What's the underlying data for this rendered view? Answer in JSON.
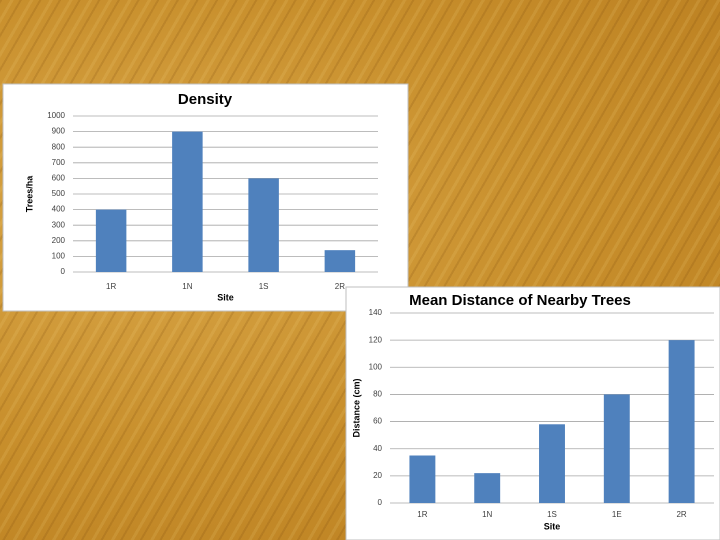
{
  "chart_data": [
    {
      "type": "bar",
      "title": "Density",
      "x_label": "Site",
      "y_label": "Trees/ha",
      "categories": [
        "1R",
        "1N",
        "1S",
        "2R"
      ],
      "values": [
        400,
        900,
        600,
        140
      ],
      "color": "#4f81bd",
      "ylim": [
        0,
        1000
      ],
      "yticks": [
        0,
        100,
        200,
        300,
        400,
        500,
        600,
        700,
        800,
        900,
        1000
      ],
      "grid": true
    },
    {
      "type": "bar",
      "title": "Mean Distance of Nearby Trees",
      "x_label": "Site",
      "y_label": "Distance (cm)",
      "categories": [
        "1R",
        "1N",
        "1S",
        "1E",
        "2R"
      ],
      "values": [
        35,
        22,
        58,
        80,
        120
      ],
      "color": "#4f81bd",
      "ylim": [
        0,
        140
      ],
      "yticks": [
        0,
        20,
        40,
        60,
        80,
        100,
        120,
        140
      ],
      "grid": true
    }
  ]
}
